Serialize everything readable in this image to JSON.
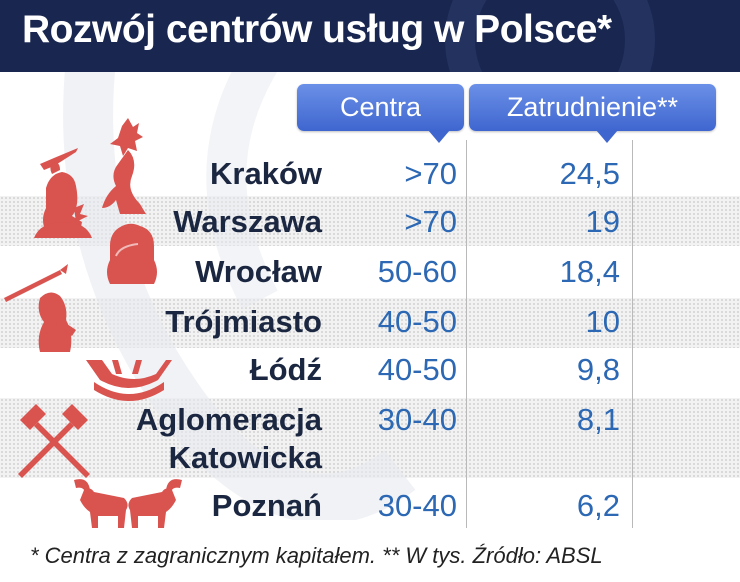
{
  "title": "Rozwój centrów usług w Polsce*",
  "columns": {
    "centra": "Centra",
    "zatrudnienie": "Zatrudnienie**"
  },
  "rows": [
    {
      "city": "Kraków",
      "centra": ">70",
      "zatrudnienie": "24,5",
      "icon": "dragon-castle-icon"
    },
    {
      "city": "Warszawa",
      "centra": ">70",
      "zatrudnienie": "19",
      "icon": "mermaid-icon"
    },
    {
      "city": "Wrocław",
      "centra": "50-60",
      "zatrudnienie": "18,4",
      "icon": "dwarf-icon"
    },
    {
      "city": "Trójmiasto",
      "centra": "40-50",
      "zatrudnienie": "10",
      "icon": "neptune-icon"
    },
    {
      "city": "Łódź",
      "centra": "40-50",
      "zatrudnienie": "9,8",
      "icon": "boat-icon"
    },
    {
      "city": "Aglomeracja\nKatowicka",
      "centra": "30-40",
      "zatrudnienie": "8,1",
      "icon": "hammers-icon"
    },
    {
      "city": "Poznań",
      "centra": "30-40",
      "zatrudnienie": "6,2",
      "icon": "goats-icon"
    }
  ],
  "footnote": "* Centra z zagranicznym kapitałem. ** W tys. Źródło: ABSL",
  "chart_data": {
    "type": "table",
    "title": "Rozwój centrów usług w Polsce*",
    "columns": [
      "Centra",
      "Zatrudnienie**"
    ],
    "categories": [
      "Kraków",
      "Warszawa",
      "Wrocław",
      "Trójmiasto",
      "Łódź",
      "Aglomeracja Katowicka",
      "Poznań"
    ],
    "series": [
      {
        "name": "Centra",
        "values": [
          ">70",
          ">70",
          "50-60",
          "40-50",
          "40-50",
          "30-40",
          "30-40"
        ]
      },
      {
        "name": "Zatrudnienie**",
        "values": [
          24.5,
          19,
          18.4,
          10,
          9.8,
          8.1,
          6.2
        ]
      }
    ]
  },
  "colors": {
    "header": "#182650",
    "accent": "#3f66cf",
    "value": "#2c68b3",
    "icon": "#d9534f",
    "city": "#1b2740"
  }
}
